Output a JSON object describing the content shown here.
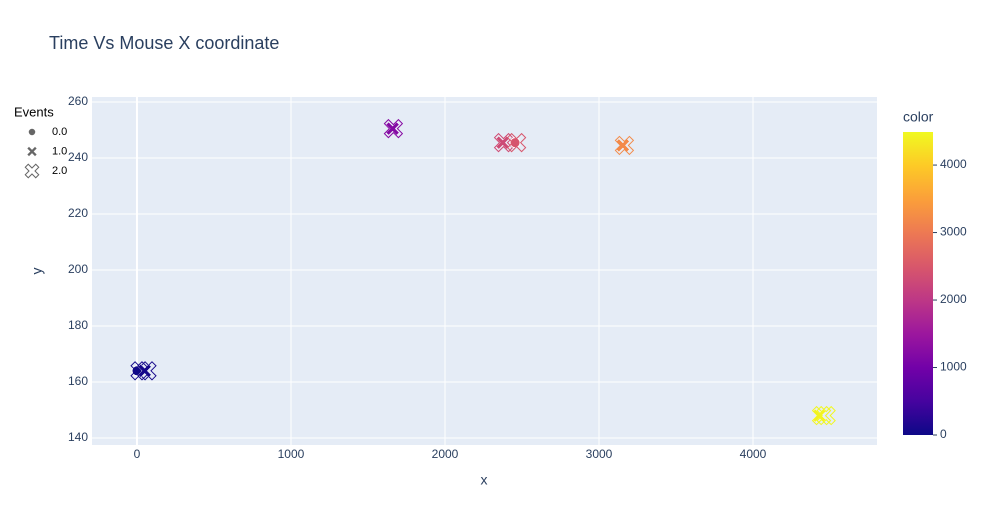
{
  "chart_data": {
    "type": "scatter",
    "title": "Time Vs Mouse X coordinate",
    "x_label": "x",
    "y_label": "y",
    "xlim": [
      -292,
      4805
    ],
    "ylim": [
      137.5,
      261.8
    ],
    "xticks": [
      0,
      1000,
      2000,
      3000,
      4000
    ],
    "yticks": [
      140,
      160,
      180,
      200,
      220,
      240,
      260
    ],
    "grid": true,
    "legend_title": "Events",
    "legend": [
      {
        "name": "0.0",
        "symbol": "circle"
      },
      {
        "name": "1.0",
        "symbol": "x"
      },
      {
        "name": "2.0",
        "symbol": "x-open"
      }
    ],
    "x": [
      0,
      20,
      50,
      65,
      1660,
      1665,
      2375,
      2380,
      2455,
      2465,
      3155,
      3165,
      4430,
      4445,
      4475
    ],
    "y": [
      164,
      164,
      164,
      164,
      250.5,
      250.5,
      245.5,
      245.5,
      245.5,
      245.5,
      244.5,
      244.5,
      148,
      148,
      148
    ],
    "events": [
      0,
      2,
      1,
      2,
      1,
      2,
      1,
      2,
      0,
      2,
      1,
      2,
      1,
      2,
      2
    ],
    "color": [
      20,
      40,
      60,
      80,
      1200,
      1250,
      2300,
      2320,
      2450,
      2480,
      3200,
      3220,
      4420,
      4450,
      4480
    ],
    "colorbar": {
      "title": "color",
      "lim": [
        0,
        4490
      ],
      "ticks": [
        0,
        1000,
        2000,
        3000,
        4000
      ],
      "colorscale": [
        "#0d0887",
        "#46039f",
        "#7201a8",
        "#9c179e",
        "#bd3786",
        "#d8576b",
        "#ed7953",
        "#fb9f3a",
        "#fdca26",
        "#f0f921"
      ]
    }
  }
}
